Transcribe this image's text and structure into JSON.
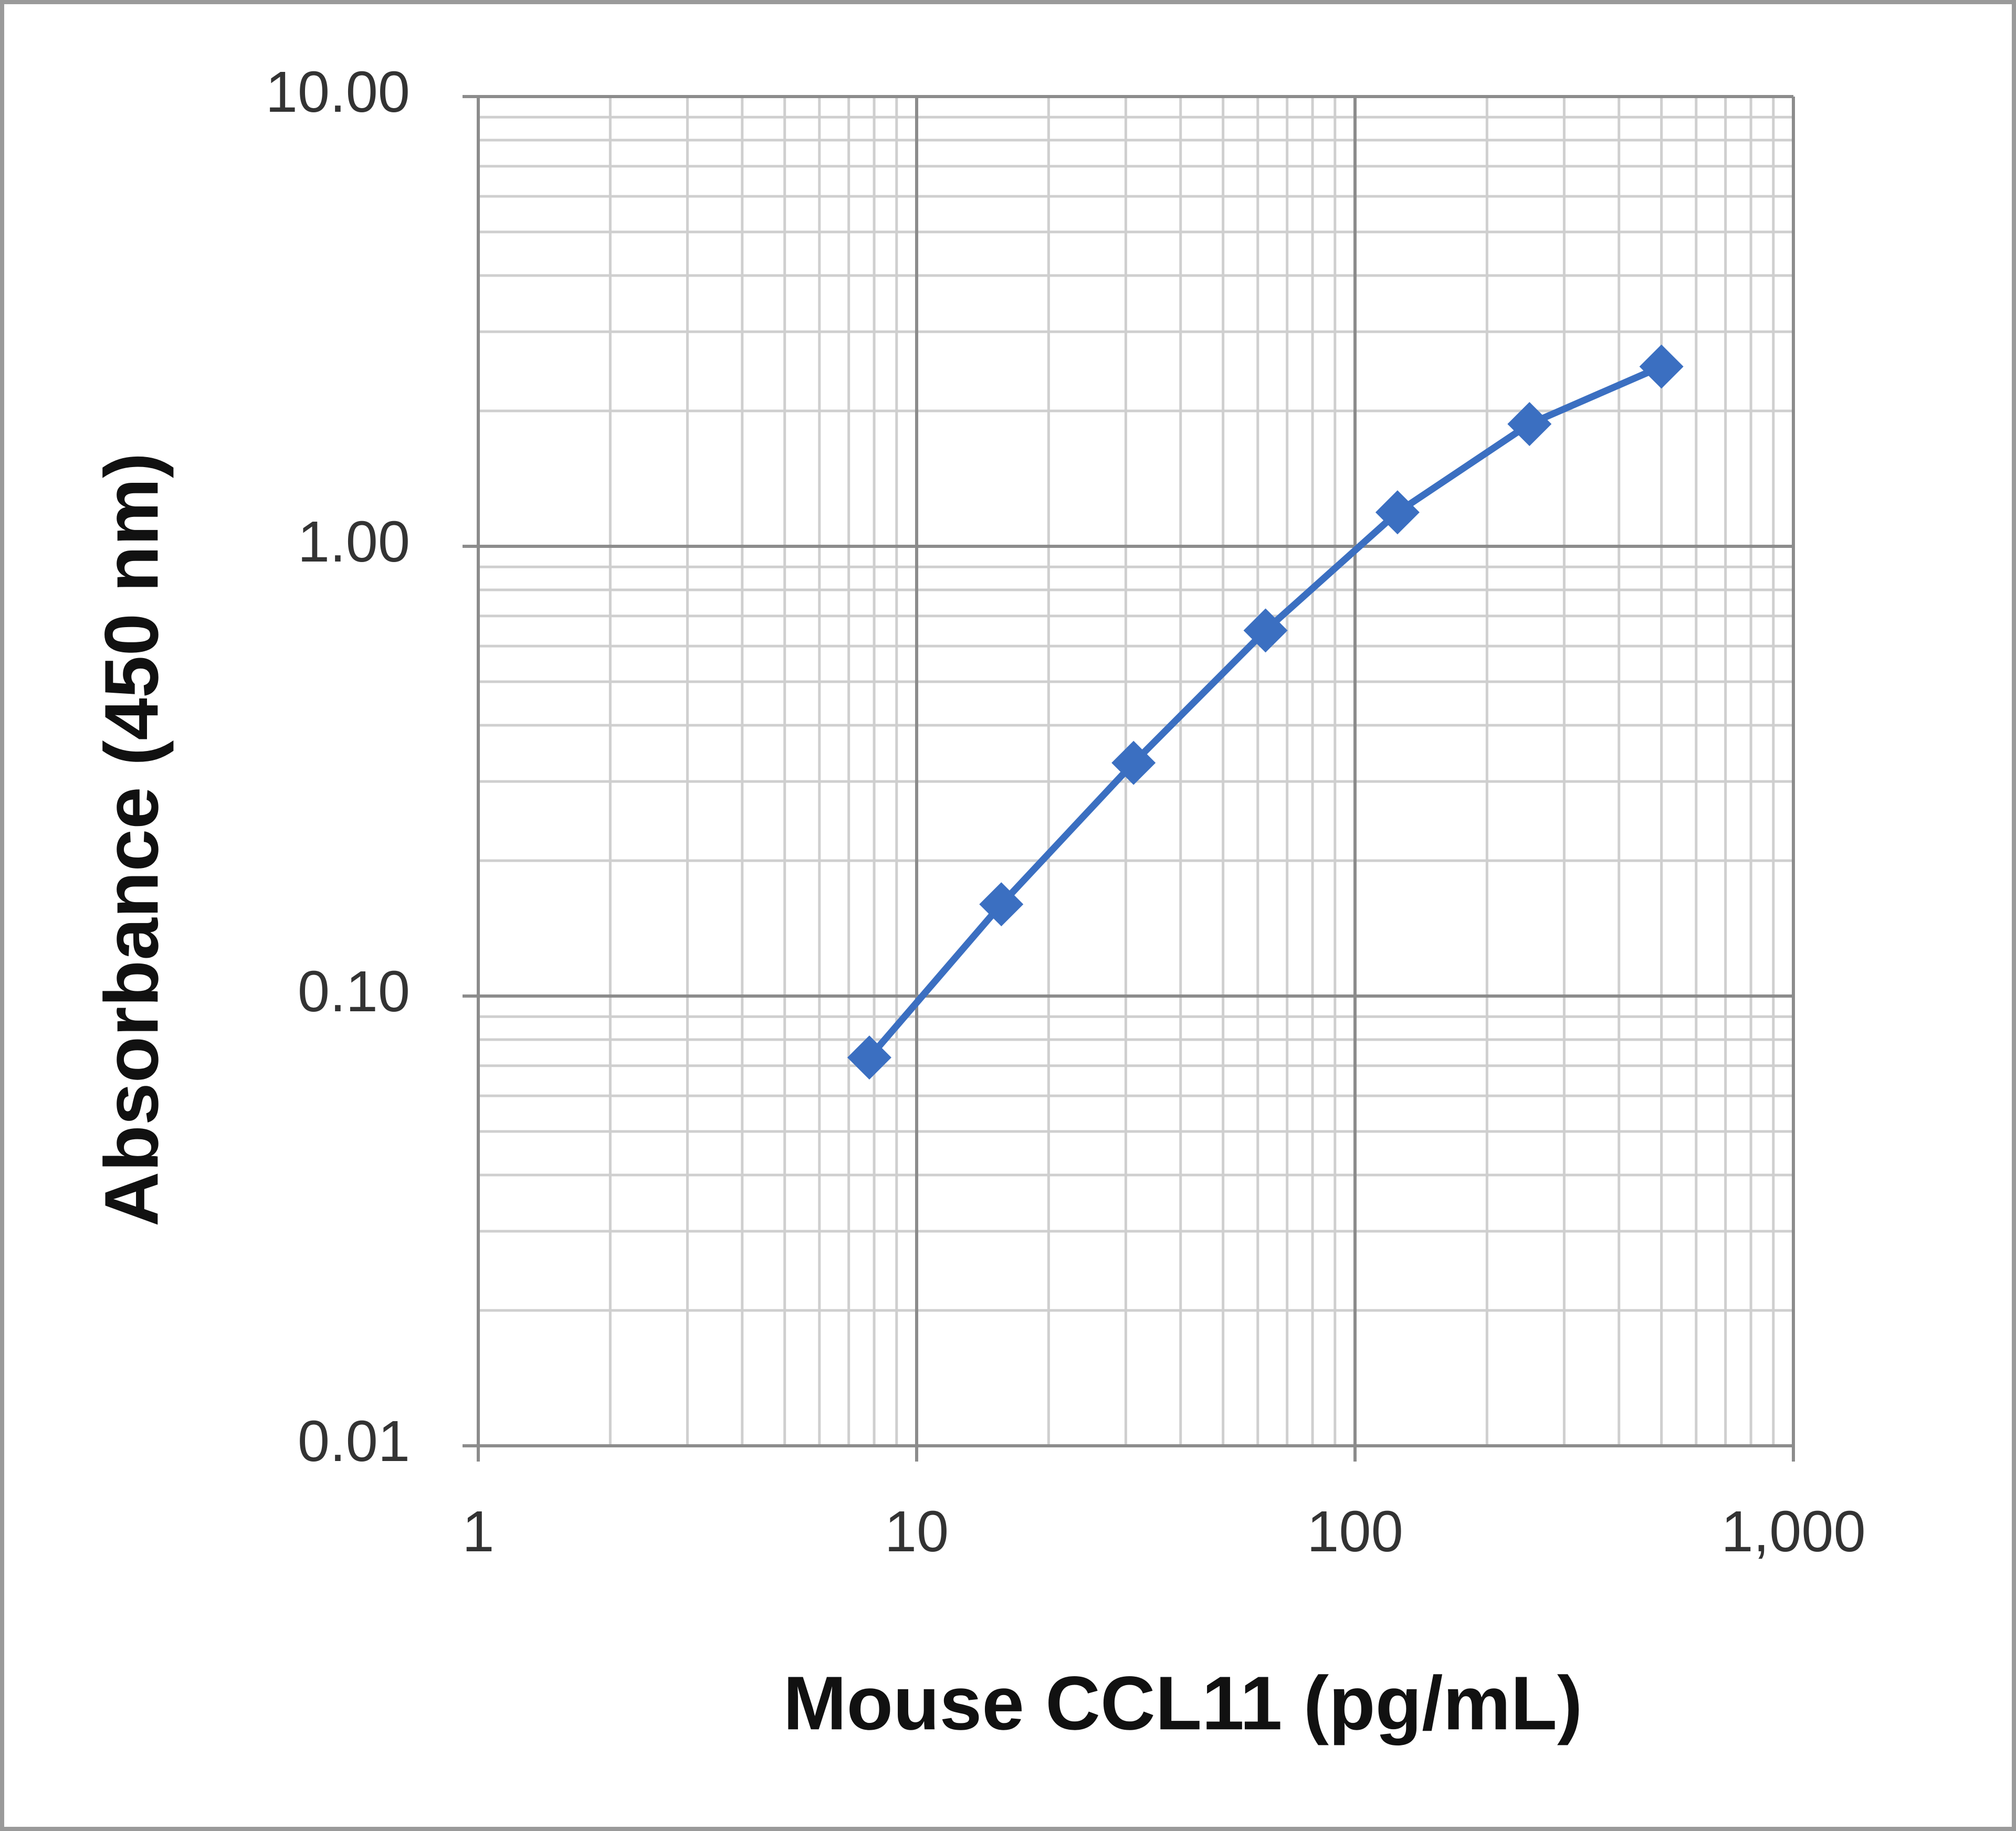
{
  "chart_data": {
    "type": "line",
    "x_label": "Mouse CCL11 (pg/mL)",
    "y_label": "Absorbance  (450 nm)",
    "x": [
      7.8,
      15.6,
      31.25,
      62.5,
      125,
      250,
      500
    ],
    "series": [
      {
        "color": "#3b6fc1",
        "values": [
          0.073,
          0.16,
          0.33,
          0.65,
          1.19,
          1.87,
          2.51
        ]
      }
    ],
    "log_x": true,
    "log_y": true,
    "grid": true,
    "xlim": [
      1,
      1000
    ],
    "xticks": [
      1,
      10,
      100,
      {
        "value": 1000,
        "label": "1,000"
      }
    ],
    "ylim": [
      0.01,
      10
    ],
    "yticks": [
      {
        "value": 0.01,
        "label": "0.01"
      },
      {
        "value": 0.1,
        "label": "0.10"
      },
      {
        "value": 1,
        "label": "1.00"
      },
      {
        "value": 10,
        "label": "10.00"
      }
    ]
  }
}
